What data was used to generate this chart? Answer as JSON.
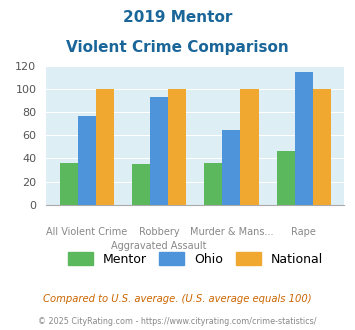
{
  "title_line1": "2019 Mentor",
  "title_line2": "Violent Crime Comparison",
  "cat_line1": [
    "",
    "Robbery",
    "Murder & Mans...",
    ""
  ],
  "cat_line2": [
    "All Violent Crime",
    "Aggravated Assault",
    "",
    "Rape"
  ],
  "mentor_values": [
    36,
    35,
    36,
    46
  ],
  "ohio_values": [
    77,
    93,
    65,
    115
  ],
  "national_values": [
    100,
    100,
    100,
    100
  ],
  "mentor_color": "#5cb85c",
  "ohio_color": "#4d94db",
  "national_color": "#f0a830",
  "bg_color": "#ddeef5",
  "ylim": [
    0,
    120
  ],
  "yticks": [
    0,
    20,
    40,
    60,
    80,
    100,
    120
  ],
  "footnote1": "Compared to U.S. average. (U.S. average equals 100)",
  "footnote2": "© 2025 CityRating.com - https://www.cityrating.com/crime-statistics/",
  "footnote1_color": "#cc6600",
  "footnote2_color": "#888888",
  "title_color": "#1a6699"
}
